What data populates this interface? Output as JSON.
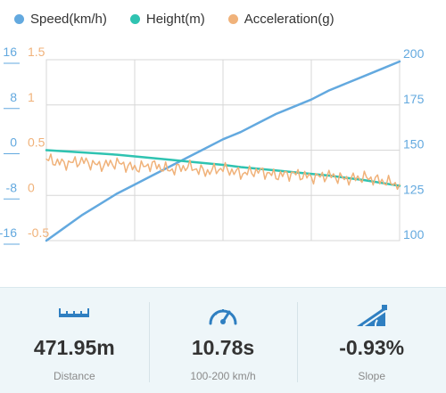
{
  "colors": {
    "speed": "#63a9df",
    "height": "#2fc3b1",
    "acceleration": "#f0b27a",
    "grid": "#d7d7d7",
    "stats_bg": "#eef6f9"
  },
  "legend": [
    {
      "name": "Speed(km/h)",
      "color": "#63a9df"
    },
    {
      "name": "Height(m)",
      "color": "#2fc3b1"
    },
    {
      "name": "Acceleration(g)",
      "color": "#f0b27a"
    }
  ],
  "chart_data": {
    "type": "line",
    "x": [
      0,
      0.05,
      0.1,
      0.15,
      0.2,
      0.25,
      0.3,
      0.35,
      0.4,
      0.45,
      0.5,
      0.55,
      0.6,
      0.65,
      0.7,
      0.75,
      0.8,
      0.85,
      0.9,
      0.95,
      1.0
    ],
    "axes": {
      "height_left": {
        "ticks": [
          "16",
          "8",
          "0",
          "-8",
          "-16"
        ],
        "ylim": [
          -16,
          16
        ],
        "color": "#63a9df"
      },
      "acceleration_left": {
        "ticks": [
          "1.5",
          "1",
          "0.5",
          "0",
          "-0.5"
        ],
        "ylim": [
          -0.5,
          1.5
        ],
        "color": "#f0b27a"
      },
      "speed_right": {
        "ticks": [
          "200",
          "175",
          "150",
          "125",
          "100"
        ],
        "ylim": [
          100,
          200
        ],
        "color": "#63a9df"
      }
    },
    "series": [
      {
        "name": "Speed(km/h)",
        "axis": "speed_right",
        "color": "#63a9df",
        "values": [
          100,
          107,
          114,
          120,
          126,
          131,
          136,
          141,
          146,
          151,
          156,
          160,
          165,
          170,
          174,
          178,
          183,
          187,
          191,
          195,
          199
        ]
      },
      {
        "name": "Height(m)",
        "axis": "height_left",
        "color": "#2fc3b1",
        "values": [
          0,
          -0.2,
          -0.4,
          -0.6,
          -0.8,
          -1.1,
          -1.4,
          -1.7,
          -2.0,
          -2.3,
          -2.6,
          -3.0,
          -3.3,
          -3.6,
          -3.9,
          -4.2,
          -4.5,
          -4.9,
          -5.3,
          -5.8,
          -6.3
        ]
      },
      {
        "name": "Acceleration(g)",
        "axis": "acceleration_left",
        "color": "#f0b27a",
        "values": [
          0.4,
          0.35,
          0.38,
          0.33,
          0.36,
          0.3,
          0.34,
          0.28,
          0.32,
          0.26,
          0.3,
          0.24,
          0.27,
          0.22,
          0.24,
          0.2,
          0.22,
          0.18,
          0.2,
          0.16,
          0.12
        ]
      }
    ],
    "grid": true
  },
  "stats": [
    {
      "icon": "ruler-icon",
      "value": "471.95m",
      "label": "Distance"
    },
    {
      "icon": "speedometer-icon",
      "value": "10.78s",
      "label": "100-200 km/h"
    },
    {
      "icon": "slope-icon",
      "value": "-0.93%",
      "label": "Slope"
    }
  ]
}
